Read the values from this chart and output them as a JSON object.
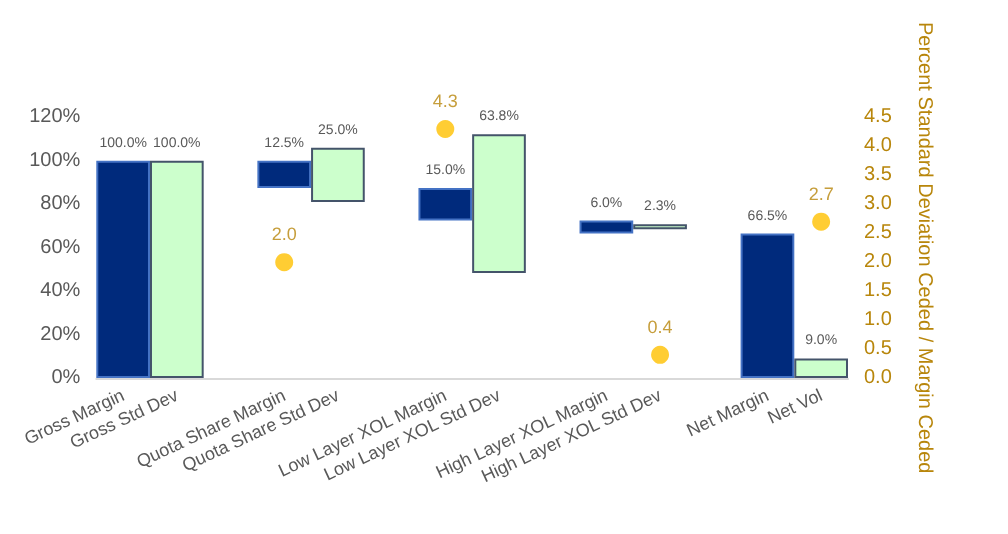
{
  "chart_data": {
    "type": "bar",
    "categories": [
      "Gross Margin",
      "Gross Std Dev",
      null,
      "Quota Share Margin",
      "Quota Share Std Dev",
      null,
      "Low Layer XOL Margin",
      "Low Layer XOL Std Dev",
      null,
      "High Layer XOL Margin",
      "High Layer XOL Std Dev",
      null,
      "Net Margin",
      "Net Vol"
    ],
    "y2label": "Percent Standard Deviation Ceded / Margin Ceded",
    "ylim": [
      0,
      120
    ],
    "yticks": [
      {
        "value": 0,
        "label": "0%"
      },
      {
        "value": 20,
        "label": "20%"
      },
      {
        "value": 40,
        "label": "40%"
      },
      {
        "value": 60,
        "label": "60%"
      },
      {
        "value": 80,
        "label": "80%"
      },
      {
        "value": 100,
        "label": "100%"
      },
      {
        "value": 120,
        "label": "120%"
      }
    ],
    "y2lim": [
      0,
      4.5
    ],
    "y2ticks": [
      {
        "value": 0,
        "label": "0.0"
      },
      {
        "value": 0.5,
        "label": "0.5"
      },
      {
        "value": 1,
        "label": "1.0"
      },
      {
        "value": 1.5,
        "label": "1.5"
      },
      {
        "value": 2,
        "label": "2.0"
      },
      {
        "value": 2.5,
        "label": "2.5"
      },
      {
        "value": 3,
        "label": "3.0"
      },
      {
        "value": 3.5,
        "label": "3.5"
      },
      {
        "value": 4,
        "label": "4.0"
      },
      {
        "value": 4.5,
        "label": "4.5"
      }
    ],
    "grid": false,
    "series": [
      {
        "color": "#002a7c",
        "values": [
          100,
          null,
          null,
          12.5,
          null,
          null,
          15,
          null,
          null,
          6,
          null,
          null,
          66.5,
          null
        ],
        "base": [
          0,
          null,
          null,
          87.5,
          null,
          null,
          72.5,
          null,
          null,
          66.5,
          null,
          null,
          0,
          null
        ],
        "value_labels": [
          "100.0%",
          null,
          null,
          "12.5%",
          null,
          null,
          "15.0%",
          null,
          null,
          "6.0%",
          null,
          null,
          "66.5%",
          null
        ]
      },
      {
        "color": "#ccffcc",
        "values": [
          null,
          100,
          null,
          null,
          25,
          null,
          null,
          63.8,
          null,
          null,
          2.3,
          null,
          null,
          9
        ],
        "base": [
          null,
          0,
          null,
          null,
          81,
          null,
          null,
          48.4,
          null,
          null,
          68.5,
          null,
          null,
          0
        ],
        "value_labels": [
          null,
          "100.0%",
          null,
          null,
          "25.0%",
          null,
          null,
          "63.8%",
          null,
          null,
          "2.3%",
          null,
          null,
          "9.0%"
        ]
      },
      {
        "type": "scatter",
        "axis": "y2",
        "color": "#ffc000",
        "x": [
          "Quota Share Margin",
          "Low Layer XOL Margin",
          "High Layer XOL Std Dev",
          "Net Vol"
        ],
        "values": [
          2.0,
          4.3,
          0.4,
          2.7
        ],
        "value_labels": [
          "2.0",
          "4.3",
          "0.4",
          "2.7"
        ]
      }
    ]
  }
}
